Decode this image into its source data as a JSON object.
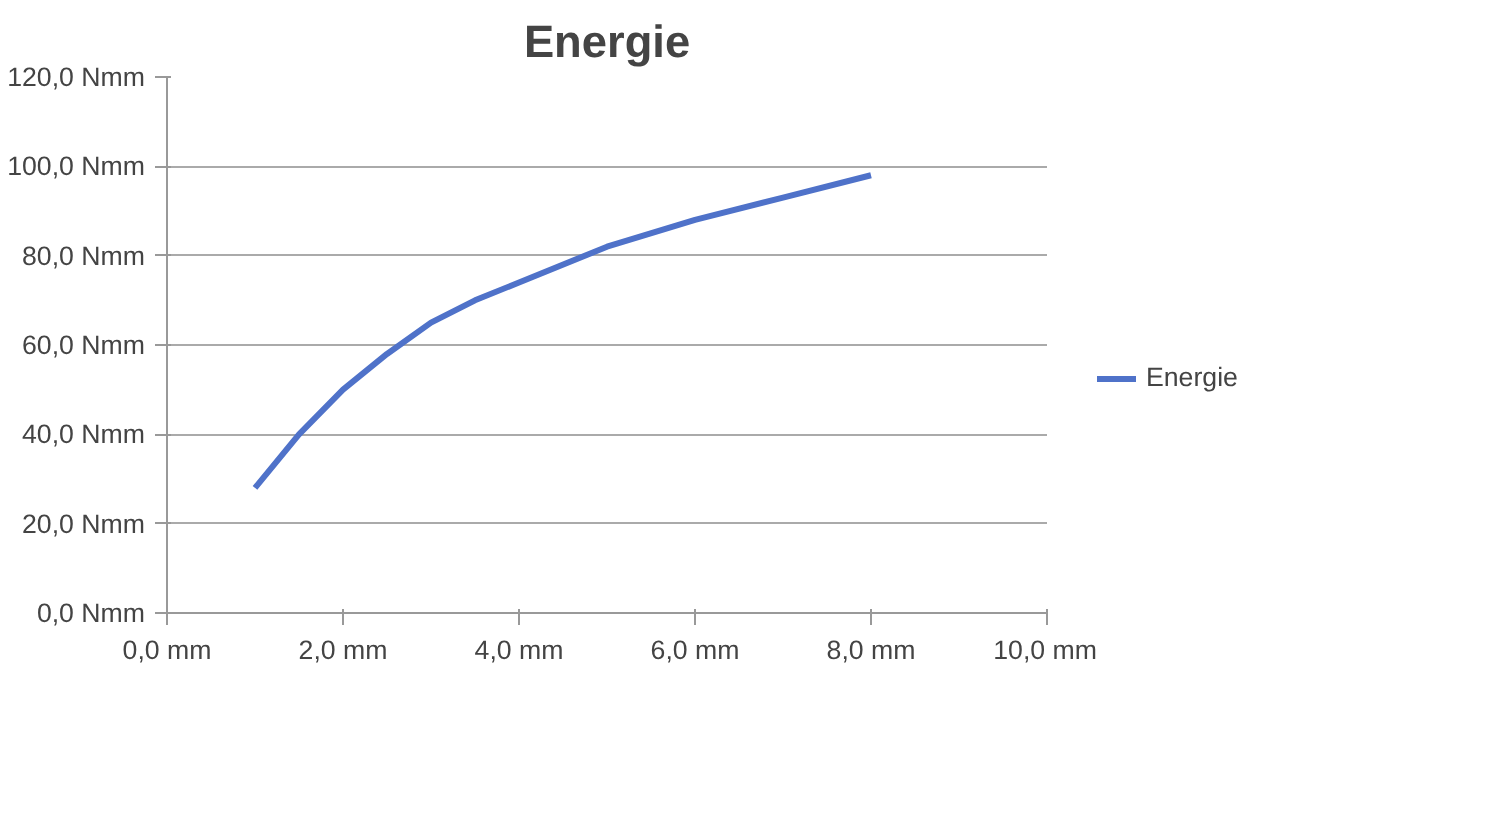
{
  "chart_data": {
    "type": "line",
    "title": "Energie",
    "x": [
      1,
      1.5,
      2,
      2.5,
      3,
      3.5,
      4,
      5,
      6,
      7,
      8
    ],
    "series": [
      {
        "name": "Energie",
        "color": "#4f72c9",
        "values": [
          28,
          40,
          50,
          58,
          65,
          70,
          74,
          82,
          88,
          93,
          98
        ]
      }
    ],
    "xlim": [
      0,
      10
    ],
    "ylim": [
      0,
      120
    ],
    "xticks": [
      {
        "value": 0,
        "label": "0,0 mm"
      },
      {
        "value": 2,
        "label": "2,0 mm"
      },
      {
        "value": 4,
        "label": "4,0 mm"
      },
      {
        "value": 6,
        "label": "6,0 mm"
      },
      {
        "value": 8,
        "label": "8,0 mm"
      },
      {
        "value": 10,
        "label": "10,0 mm"
      }
    ],
    "yticks": [
      {
        "value": 0,
        "label": "0,0 Nmm"
      },
      {
        "value": 20,
        "label": "20,0 Nmm"
      },
      {
        "value": 40,
        "label": "40,0 Nmm"
      },
      {
        "value": 60,
        "label": "60,0 Nmm"
      },
      {
        "value": 80,
        "label": "80,0 Nmm"
      },
      {
        "value": 100,
        "label": "100,0 Nmm"
      },
      {
        "value": 120,
        "label": "120,0 Nmm"
      }
    ],
    "grid": "y",
    "legend": "right",
    "marker": "none",
    "line_style": "solid"
  }
}
